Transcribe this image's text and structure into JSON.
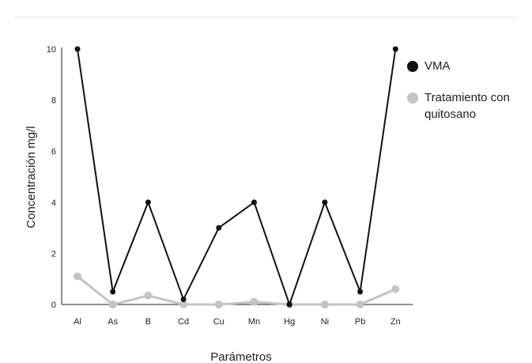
{
  "chart_data": {
    "type": "line",
    "title": "",
    "xlabel": "Parámetros",
    "ylabel": "Concentración mg/l",
    "categories": [
      "Al",
      "As",
      "B",
      "Cd",
      "Cu",
      "Mn",
      "Hg",
      "Ni",
      "Pb",
      "Zn"
    ],
    "ylim": [
      0,
      10
    ],
    "yticks": [
      0,
      2,
      4,
      6,
      8,
      10
    ],
    "grid": false,
    "legend_position": "right",
    "series": [
      {
        "name": "VMA",
        "color": "#111111",
        "values": [
          10,
          0.5,
          4,
          0.2,
          3,
          4,
          0,
          4,
          0.5,
          10
        ]
      },
      {
        "name": "Tratamiento con quitosano",
        "color": "#c4c4c4",
        "values": [
          1.1,
          0,
          0.35,
          0,
          0,
          0.1,
          0,
          0,
          0,
          0.6
        ]
      }
    ]
  },
  "legend": {
    "items": [
      {
        "lines": [
          "VMA"
        ]
      },
      {
        "lines": [
          "Tratamiento con",
          "quitosano"
        ]
      }
    ]
  }
}
